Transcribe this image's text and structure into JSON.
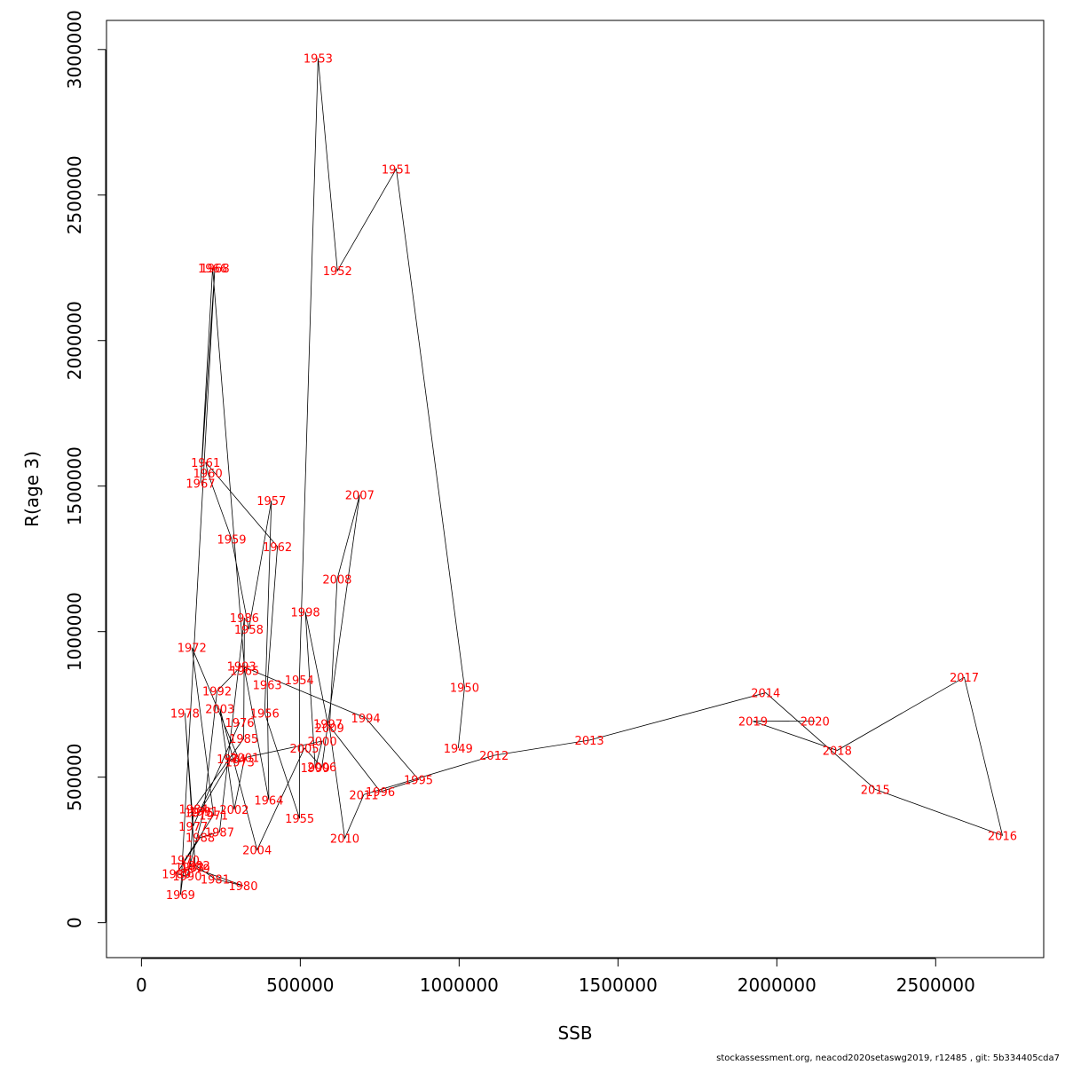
{
  "chart_data": {
    "type": "line",
    "xlabel": "SSB",
    "ylabel": "R(age 3)",
    "xlim": [
      -110000,
      2840000
    ],
    "ylim": [
      -120000,
      3100000
    ],
    "x_ticks": [
      0,
      500000,
      1000000,
      1500000,
      2000000,
      2500000
    ],
    "y_ticks": [
      0,
      500000,
      1000000,
      1500000,
      2000000,
      2500000,
      3000000
    ],
    "x_tick_labels": [
      "0",
      "500000",
      "1000000",
      "1500000",
      "2000000",
      "2500000"
    ],
    "y_tick_labels": [
      "0",
      "500000",
      "1000000",
      "1500000",
      "2000000",
      "2500000",
      "3000000"
    ],
    "line_color": "#000000",
    "label_color": "#ff0000",
    "grid": false,
    "points": [
      {
        "year": "1949",
        "ssb": 997000,
        "rec": 600000
      },
      {
        "year": "1950",
        "ssb": 1017000,
        "rec": 808000
      },
      {
        "year": "1951",
        "ssb": 802000,
        "rec": 2590000
      },
      {
        "year": "1952",
        "ssb": 617000,
        "rec": 2240000
      },
      {
        "year": "1953",
        "ssb": 556000,
        "rec": 2970000
      },
      {
        "year": "1954",
        "ssb": 497000,
        "rec": 834000
      },
      {
        "year": "1955",
        "ssb": 498000,
        "rec": 358000
      },
      {
        "year": "1956",
        "ssb": 388000,
        "rec": 720000
      },
      {
        "year": "1957",
        "ssb": 409000,
        "rec": 1450000
      },
      {
        "year": "1958",
        "ssb": 338000,
        "rec": 1008000
      },
      {
        "year": "1959",
        "ssb": 284000,
        "rec": 1318000
      },
      {
        "year": "1960",
        "ssb": 209000,
        "rec": 1545000
      },
      {
        "year": "1961",
        "ssb": 202000,
        "rec": 1582000
      },
      {
        "year": "1962",
        "ssb": 428000,
        "rec": 1292000
      },
      {
        "year": "1963",
        "ssb": 396000,
        "rec": 818000
      },
      {
        "year": "1964",
        "ssb": 401000,
        "rec": 422000
      },
      {
        "year": "1965",
        "ssb": 325000,
        "rec": 866000
      },
      {
        "year": "1966",
        "ssb": 224000,
        "rec": 2250000
      },
      {
        "year": "1967",
        "ssb": 186000,
        "rec": 1510000
      },
      {
        "year": "1968",
        "ssb": 231000,
        "rec": 2250000
      },
      {
        "year": "1969",
        "ssb": 123000,
        "rec": 96000
      },
      {
        "year": "1970",
        "ssb": 137000,
        "rec": 216000
      },
      {
        "year": "1971",
        "ssb": 227000,
        "rec": 370000
      },
      {
        "year": "1972",
        "ssb": 159000,
        "rec": 945000
      },
      {
        "year": "1973",
        "ssb": 310000,
        "rec": 553000
      },
      {
        "year": "1974",
        "ssb": 283000,
        "rec": 563000
      },
      {
        "year": "1975",
        "ssb": 182000,
        "rec": 378000
      },
      {
        "year": "1976",
        "ssb": 309000,
        "rec": 688000
      },
      {
        "year": "1977",
        "ssb": 163000,
        "rec": 332000
      },
      {
        "year": "1978",
        "ssb": 137000,
        "rec": 720000
      },
      {
        "year": "1979",
        "ssb": 170000,
        "rec": 186000
      },
      {
        "year": "1980",
        "ssb": 320000,
        "rec": 127000
      },
      {
        "year": "1981",
        "ssb": 232000,
        "rec": 150000
      },
      {
        "year": "1982",
        "ssb": 170000,
        "rec": 197000
      },
      {
        "year": "1983",
        "ssb": 152000,
        "rec": 191000
      },
      {
        "year": "1984",
        "ssb": 164000,
        "rec": 390000
      },
      {
        "year": "1985",
        "ssb": 322000,
        "rec": 633000
      },
      {
        "year": "1986",
        "ssb": 324000,
        "rec": 1048000
      },
      {
        "year": "1987",
        "ssb": 246000,
        "rec": 312000
      },
      {
        "year": "1988",
        "ssb": 185000,
        "rec": 293000
      },
      {
        "year": "1989",
        "ssb": 110000,
        "rec": 168000
      },
      {
        "year": "1990",
        "ssb": 144000,
        "rec": 160000
      },
      {
        "year": "1991",
        "ssb": 196000,
        "rec": 383000
      },
      {
        "year": "1992",
        "ssb": 238000,
        "rec": 796000
      },
      {
        "year": "1993",
        "ssb": 315000,
        "rec": 882000
      },
      {
        "year": "1994",
        "ssb": 706000,
        "rec": 703000
      },
      {
        "year": "1995",
        "ssb": 872000,
        "rec": 492000
      },
      {
        "year": "1996",
        "ssb": 752000,
        "rec": 450000
      },
      {
        "year": "1997",
        "ssb": 587000,
        "rec": 683000
      },
      {
        "year": "1998",
        "ssb": 516000,
        "rec": 1068000
      },
      {
        "year": "1999",
        "ssb": 547000,
        "rec": 532000
      },
      {
        "year": "2000",
        "ssb": 569000,
        "rec": 624000
      },
      {
        "year": "2001",
        "ssb": 325000,
        "rec": 567000
      },
      {
        "year": "2002",
        "ssb": 292000,
        "rec": 389000
      },
      {
        "year": "2003",
        "ssb": 247000,
        "rec": 735000
      },
      {
        "year": "2004",
        "ssb": 364000,
        "rec": 250000
      },
      {
        "year": "2005",
        "ssb": 513000,
        "rec": 600000
      },
      {
        "year": "2006",
        "ssb": 568000,
        "rec": 535000
      },
      {
        "year": "2007",
        "ssb": 687000,
        "rec": 1470000
      },
      {
        "year": "2008",
        "ssb": 616000,
        "rec": 1180000
      },
      {
        "year": "2009",
        "ssb": 592000,
        "rec": 670000
      },
      {
        "year": "2010",
        "ssb": 640000,
        "rec": 290000
      },
      {
        "year": "2011",
        "ssb": 700000,
        "rec": 440000
      },
      {
        "year": "2012",
        "ssb": 1110000,
        "rec": 575000
      },
      {
        "year": "2013",
        "ssb": 1410000,
        "rec": 627000
      },
      {
        "year": "2014",
        "ssb": 1965000,
        "rec": 790000
      },
      {
        "year": "2015",
        "ssb": 2310000,
        "rec": 458000
      },
      {
        "year": "2016",
        "ssb": 2710000,
        "rec": 300000
      },
      {
        "year": "2017",
        "ssb": 2590000,
        "rec": 843000
      },
      {
        "year": "2018",
        "ssb": 2190000,
        "rec": 592000
      },
      {
        "year": "2019",
        "ssb": 1925000,
        "rec": 692000
      },
      {
        "year": "2020",
        "ssb": 2120000,
        "rec": 693000
      }
    ]
  },
  "footer": {
    "text": "stockassessment.org, neacod2020setaswg2019, r12485 , git: 5b334405cda7"
  }
}
